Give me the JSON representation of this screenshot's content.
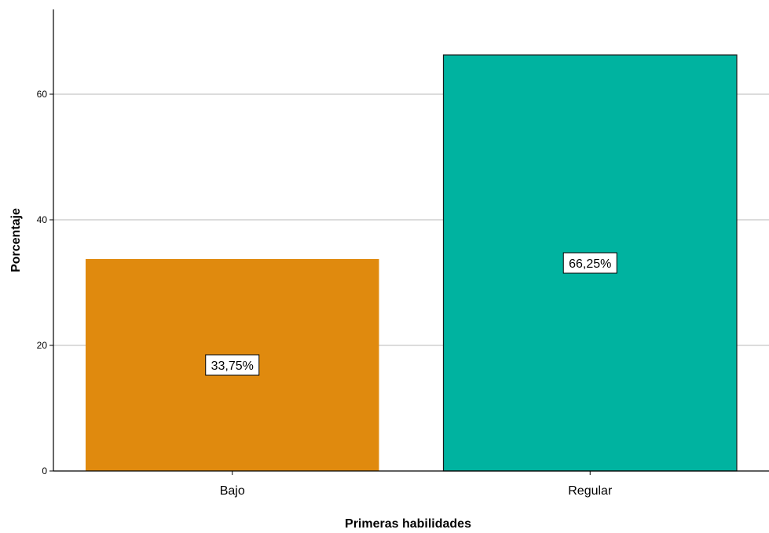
{
  "chart_data": {
    "type": "bar",
    "categories": [
      "Bajo",
      "Regular"
    ],
    "values": [
      33.75,
      66.25
    ],
    "data_labels": [
      "33,75%",
      "66,25%"
    ],
    "colors": [
      "#E08A0E",
      "#00B3A0"
    ],
    "xlabel": "Primeras habilidades",
    "ylabel": "Porcentaje",
    "ylim": [
      0,
      73.5
    ],
    "yticks": [
      0,
      20,
      40,
      60
    ],
    "grid": true
  }
}
